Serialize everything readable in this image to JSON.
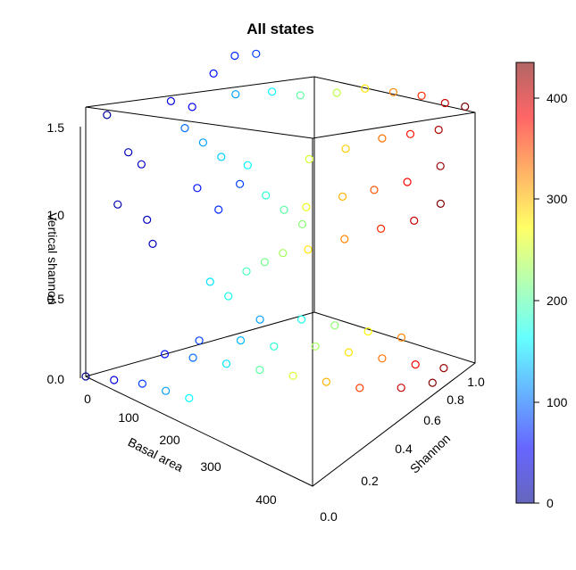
{
  "chart_data": {
    "type": "scatter",
    "title": "All states",
    "xlabel": "Basal area",
    "ylabel": "Shannon",
    "zlabel": "Vertical shannon",
    "xlim": [
      0,
      450
    ],
    "ylim": [
      0,
      1.0
    ],
    "zlim": [
      0,
      1.6
    ],
    "x_ticks": [
      "0",
      "100",
      "200",
      "300",
      "400"
    ],
    "y_ticks": [
      "0.0",
      "0.2",
      "0.4",
      "0.6",
      "0.8",
      "1.0"
    ],
    "z_ticks": [
      "0.0",
      "0.5",
      "1.0",
      "1.5"
    ],
    "colorbar": {
      "range": [
        0,
        430
      ],
      "ticks": [
        "0",
        "100",
        "200",
        "300",
        "400"
      ],
      "palette": [
        "#00008F",
        "#0000FF",
        "#0080FF",
        "#00FFFF",
        "#80FF80",
        "#FFFF00",
        "#FF8000",
        "#FF0000",
        "#800000"
      ]
    },
    "marker": "open-circle",
    "series": [
      {
        "points": [
          [
            0,
            0,
            0
          ],
          [
            40,
            0.05,
            0
          ],
          [
            80,
            0.1,
            0
          ],
          [
            120,
            0.12,
            0
          ],
          [
            160,
            0.14,
            0
          ],
          [
            60,
            0.3,
            0
          ],
          [
            100,
            0.35,
            0
          ],
          [
            150,
            0.4,
            0
          ],
          [
            200,
            0.45,
            0
          ],
          [
            250,
            0.5,
            0
          ],
          [
            300,
            0.55,
            0
          ],
          [
            350,
            0.6,
            0
          ],
          [
            400,
            0.7,
            0
          ],
          [
            430,
            0.8,
            0
          ],
          [
            80,
            0.45,
            0
          ],
          [
            130,
            0.55,
            0
          ],
          [
            180,
            0.6,
            0
          ],
          [
            230,
            0.7,
            0
          ],
          [
            280,
            0.75,
            0
          ],
          [
            330,
            0.8,
            0
          ],
          [
            380,
            0.85,
            0
          ],
          [
            420,
            0.9,
            0
          ],
          [
            120,
            0.7,
            0
          ],
          [
            170,
            0.8,
            0
          ],
          [
            220,
            0.85,
            0
          ],
          [
            270,
            0.9,
            0
          ],
          [
            320,
            0.95,
            0
          ],
          [
            10,
            0.1,
            1.6
          ],
          [
            20,
            0.2,
            1.3
          ],
          [
            15,
            0.15,
            1.0
          ],
          [
            25,
            0.3,
            0.8
          ],
          [
            30,
            0.25,
            1.2
          ],
          [
            40,
            0.4,
            1.5
          ],
          [
            20,
            0.35,
            0.6
          ],
          [
            50,
            0.5,
            1.4
          ],
          [
            60,
            0.6,
            1.55
          ],
          [
            70,
            0.7,
            1.6
          ],
          [
            80,
            0.8,
            1.55
          ],
          [
            60,
            0.5,
            0.9
          ],
          [
            70,
            0.6,
            0.7
          ],
          [
            80,
            0.7,
            0.8
          ],
          [
            100,
            0.3,
            1.5
          ],
          [
            120,
            0.35,
            1.4
          ],
          [
            140,
            0.4,
            1.3
          ],
          [
            160,
            0.5,
            1.2
          ],
          [
            180,
            0.55,
            1.0
          ],
          [
            200,
            0.6,
            0.9
          ],
          [
            220,
            0.65,
            0.8
          ],
          [
            120,
            0.55,
            1.55
          ],
          [
            160,
            0.65,
            1.55
          ],
          [
            200,
            0.7,
            1.55
          ],
          [
            240,
            0.8,
            1.55
          ],
          [
            280,
            0.85,
            1.6
          ],
          [
            320,
            0.9,
            1.6
          ],
          [
            360,
            0.95,
            1.6
          ],
          [
            400,
            0.97,
            1.6
          ],
          [
            430,
            1.0,
            1.6
          ],
          [
            250,
            0.6,
            1.3
          ],
          [
            290,
            0.7,
            1.35
          ],
          [
            330,
            0.8,
            1.4
          ],
          [
            370,
            0.85,
            1.45
          ],
          [
            410,
            0.9,
            1.5
          ],
          [
            260,
            0.55,
            1.05
          ],
          [
            300,
            0.65,
            1.1
          ],
          [
            340,
            0.72,
            1.15
          ],
          [
            380,
            0.8,
            1.2
          ],
          [
            420,
            0.88,
            1.3
          ],
          [
            280,
            0.5,
            0.85
          ],
          [
            320,
            0.6,
            0.9
          ],
          [
            360,
            0.7,
            0.95
          ],
          [
            400,
            0.78,
            1.0
          ],
          [
            430,
            0.85,
            1.1
          ],
          [
            150,
            0.3,
            0.6
          ],
          [
            170,
            0.35,
            0.5
          ],
          [
            190,
            0.4,
            0.65
          ],
          [
            210,
            0.45,
            0.7
          ],
          [
            230,
            0.5,
            0.75
          ]
        ]
      }
    ]
  }
}
